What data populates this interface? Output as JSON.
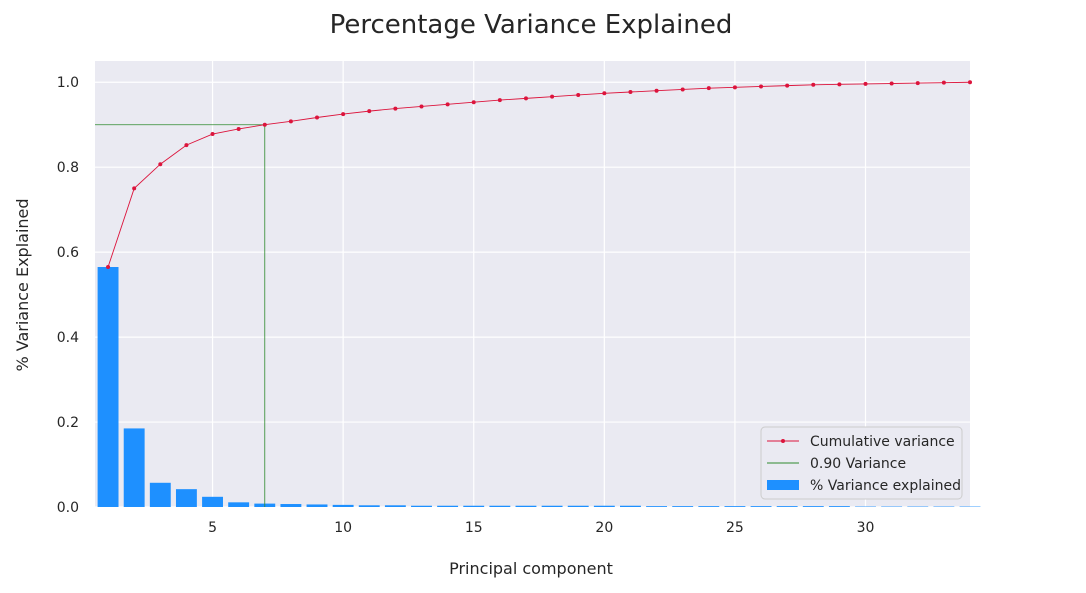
{
  "chart_data": {
    "type": "bar",
    "title": "Percentage Variance Explained",
    "xlabel": "Principal component",
    "ylabel": "% Variance Explained",
    "xlim": [
      0.5,
      34
    ],
    "ylim": [
      0,
      1.05
    ],
    "x_ticks": [
      5,
      10,
      15,
      20,
      25,
      30
    ],
    "y_ticks": [
      0.0,
      0.2,
      0.4,
      0.6,
      0.8,
      1.0
    ],
    "grid": true,
    "legend_position": "lower-right",
    "colors": {
      "plot_background": "#EAEAF2",
      "grid": "#FFFFFF",
      "bars": "#1E90FF",
      "cumulative": "#DC143C",
      "threshold": "#2E8B2E"
    },
    "x": [
      1,
      2,
      3,
      4,
      5,
      6,
      7,
      8,
      9,
      10,
      11,
      12,
      13,
      14,
      15,
      16,
      17,
      18,
      19,
      20,
      21,
      22,
      23,
      24,
      25,
      26,
      27,
      28,
      29,
      30,
      31,
      32,
      33,
      34
    ],
    "series": [
      {
        "name": "% Variance explained",
        "kind": "bar",
        "values": [
          0.565,
          0.185,
          0.057,
          0.042,
          0.024,
          0.011,
          0.008,
          0.007,
          0.006,
          0.005,
          0.004,
          0.004,
          0.003,
          0.003,
          0.003,
          0.003,
          0.003,
          0.003,
          0.003,
          0.003,
          0.003,
          0.002,
          0.002,
          0.002,
          0.002,
          0.002,
          0.002,
          0.002,
          0.002,
          0.001,
          0.001,
          0.001,
          0.001,
          0.001
        ]
      },
      {
        "name": "Cumulative variance",
        "kind": "line",
        "values": [
          0.565,
          0.75,
          0.807,
          0.852,
          0.878,
          0.89,
          0.9,
          0.908,
          0.917,
          0.925,
          0.932,
          0.938,
          0.943,
          0.948,
          0.953,
          0.958,
          0.962,
          0.966,
          0.97,
          0.974,
          0.977,
          0.98,
          0.983,
          0.986,
          0.988,
          0.99,
          0.992,
          0.994,
          0.995,
          0.996,
          0.997,
          0.998,
          0.999,
          1.0
        ]
      }
    ],
    "threshold": {
      "name": "0.90 Variance",
      "y": 0.9,
      "x": 7
    },
    "legend": [
      "Cumulative variance",
      "0.90 Variance",
      "% Variance explained"
    ]
  }
}
